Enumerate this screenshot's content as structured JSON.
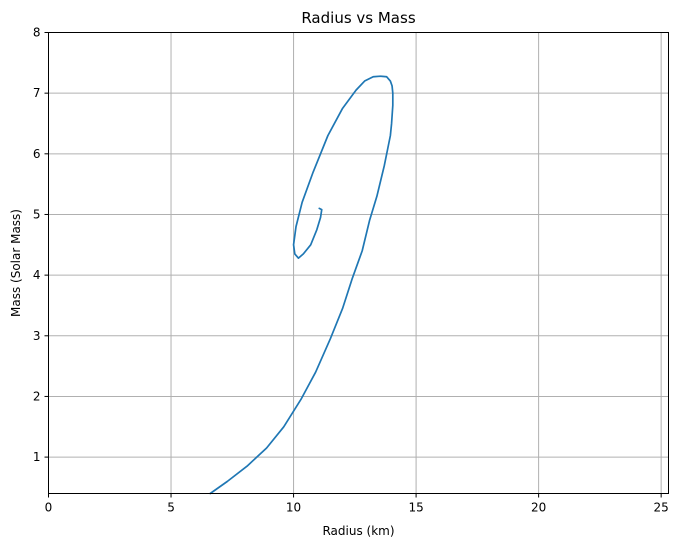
{
  "chart_data": {
    "type": "line",
    "title": "Radius vs Mass",
    "xlabel": "Radius (km)",
    "ylabel": "Mass (Solar Mass)",
    "xlim": [
      0,
      25.3
    ],
    "ylim": [
      0.4,
      8
    ],
    "xticks": [
      0,
      5,
      10,
      15,
      20,
      25
    ],
    "yticks": [
      1,
      2,
      3,
      4,
      5,
      6,
      7,
      8
    ],
    "grid": true,
    "color": "#1f77b4",
    "series": [
      {
        "x": [
          6.6,
          7.3,
          8.1,
          8.9,
          9.6,
          10.3,
          10.9,
          11.5,
          12.0,
          12.4,
          12.8,
          13.1,
          13.4,
          13.7,
          13.85,
          13.95,
          14.0,
          14.05,
          14.05,
          14.02,
          13.95,
          13.8,
          13.55,
          13.25,
          12.9,
          12.55,
          12.0,
          11.4,
          10.8,
          10.35,
          10.1,
          10.0,
          10.05,
          10.2,
          10.4,
          10.7,
          10.95,
          11.1,
          11.15,
          11.05
        ],
        "y": [
          0.4,
          0.6,
          0.85,
          1.15,
          1.5,
          1.95,
          2.4,
          2.95,
          3.45,
          3.95,
          4.4,
          4.9,
          5.3,
          5.8,
          6.1,
          6.3,
          6.5,
          6.8,
          7.0,
          7.12,
          7.2,
          7.27,
          7.28,
          7.27,
          7.2,
          7.05,
          6.75,
          6.3,
          5.7,
          5.2,
          4.8,
          4.5,
          4.35,
          4.28,
          4.35,
          4.5,
          4.75,
          4.95,
          5.08,
          5.1
        ]
      }
    ]
  }
}
